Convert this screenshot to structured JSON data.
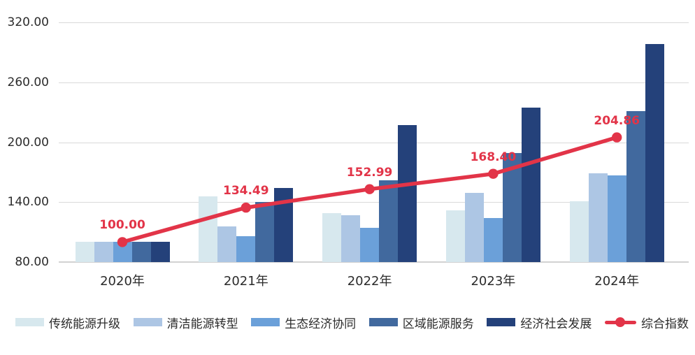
{
  "chart_data": {
    "type": "bar",
    "subtype": "grouped-bars-with-line-overlay",
    "title": "",
    "xlabel": "",
    "ylabel": "",
    "grid": true,
    "legend_position": "bottom",
    "categories": [
      "2020年",
      "2021年",
      "2022年",
      "2023年",
      "2024年"
    ],
    "series": [
      {
        "name": "传统能源升级",
        "color": "#d7e8ee",
        "values": [
          100,
          146,
          129,
          132,
          141
        ]
      },
      {
        "name": "清洁能源转型",
        "color": "#adc6e4",
        "values": [
          100,
          116,
          127,
          149,
          169
        ]
      },
      {
        "name": "生态经济协同",
        "color": "#6ba0d9",
        "values": [
          100,
          106,
          114,
          124,
          167
        ]
      },
      {
        "name": "区域能源服务",
        "color": "#41699e",
        "values": [
          100,
          140,
          162,
          189,
          231
        ]
      },
      {
        "name": "经济社会发展",
        "color": "#24417a",
        "values": [
          100,
          154,
          217,
          235,
          298
        ]
      }
    ],
    "line_series": {
      "name": "综合指数",
      "color": "#e23448",
      "values": [
        100.0,
        134.49,
        152.99,
        168.4,
        204.86
      ],
      "point_labels": [
        "100.00",
        "134.49",
        "152.99",
        "168.40",
        "204.86"
      ]
    },
    "y_axis": {
      "min": 80,
      "max": 320,
      "tick_values": [
        320,
        260,
        200,
        140,
        80
      ],
      "tick_labels": [
        "320.00",
        "260.00",
        "200.00",
        "140.00",
        "80.00"
      ]
    }
  },
  "style": {
    "grid_color": "#d9d9d9",
    "axis_color": "#d2d2d2",
    "text_color": "#2b2b2b",
    "background": "#ffffff"
  }
}
